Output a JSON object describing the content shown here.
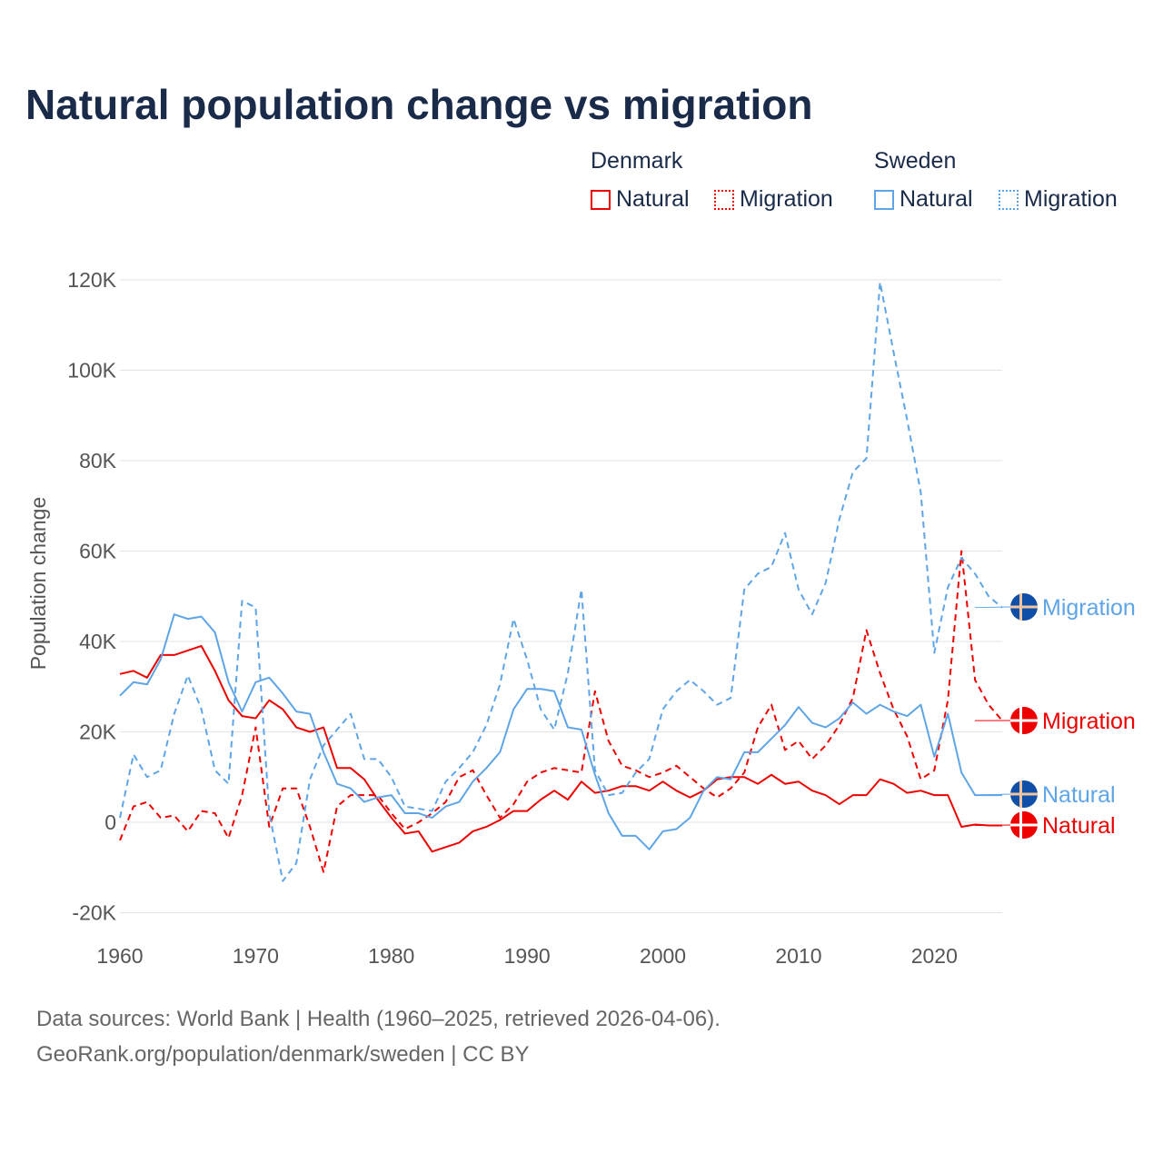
{
  "chart_data": {
    "type": "line",
    "title": "Natural population change vs migration",
    "xlabel": "",
    "ylabel": "Population change",
    "xlim": [
      1960,
      2025
    ],
    "ylim": [
      -20000,
      120000
    ],
    "x_ticks": [
      1960,
      1970,
      1980,
      1990,
      2000,
      2010,
      2020
    ],
    "x_tick_labels": [
      "1960",
      "1970",
      "1980",
      "1990",
      "2000",
      "2010",
      "2020"
    ],
    "y_ticks": [
      -20000,
      0,
      20000,
      40000,
      60000,
      80000,
      100000,
      120000
    ],
    "y_tick_labels": [
      "-20K",
      "0",
      "20K",
      "40K",
      "60K",
      "80K",
      "100K",
      "120K"
    ],
    "grid": true,
    "legend_placement": "top-right",
    "legend_groups": [
      {
        "country": "Denmark",
        "items": [
          "Natural",
          "Migration"
        ]
      },
      {
        "country": "Sweden",
        "items": [
          "Natural",
          "Migration"
        ]
      }
    ],
    "x": [
      1960,
      1961,
      1962,
      1963,
      1964,
      1965,
      1966,
      1967,
      1968,
      1969,
      1970,
      1971,
      1972,
      1973,
      1974,
      1975,
      1976,
      1977,
      1978,
      1979,
      1980,
      1981,
      1982,
      1983,
      1984,
      1985,
      1986,
      1987,
      1988,
      1989,
      1990,
      1991,
      1992,
      1993,
      1994,
      1995,
      1996,
      1997,
      1998,
      1999,
      2000,
      2001,
      2002,
      2003,
      2004,
      2005,
      2006,
      2007,
      2008,
      2009,
      2010,
      2011,
      2012,
      2013,
      2014,
      2015,
      2016,
      2017,
      2018,
      2019,
      2020,
      2021,
      2022,
      2023,
      2024,
      2025
    ],
    "series": [
      {
        "name": "Denmark Natural",
        "end_label": "Natural",
        "color": "#ee0000",
        "dash": false,
        "flag": "denmark",
        "values": [
          32.8,
          33.5,
          32,
          37,
          37,
          38,
          39,
          33.5,
          27,
          23.5,
          23,
          27,
          25,
          21,
          20,
          21,
          12,
          12,
          9.5,
          5,
          1,
          -2.5,
          -2,
          -6.5,
          -5.5,
          -4.5,
          -2,
          -1,
          0.5,
          2.5,
          2.5,
          5,
          7,
          5,
          9,
          6.5,
          7,
          8,
          8,
          7,
          9,
          7,
          5.5,
          7,
          9.5,
          10,
          10,
          8.5,
          10.5,
          8.5,
          9,
          7,
          6,
          4,
          6,
          6,
          9.5,
          8.5,
          6.5,
          7,
          6,
          6,
          -1,
          -0.5,
          -0.7,
          -0.7
        ]
      },
      {
        "name": "Denmark Migration",
        "end_label": "Migration",
        "color": "#ee0000",
        "dash": true,
        "flag": "denmark",
        "values": [
          -4,
          3.5,
          4.5,
          1,
          1.5,
          -2,
          2.5,
          2,
          -3.5,
          6,
          21,
          -1,
          7.5,
          7.5,
          -1,
          -11,
          3.5,
          6,
          6,
          6,
          2,
          -1.5,
          0,
          2,
          4.5,
          10,
          11.5,
          6,
          1,
          4,
          9,
          11,
          12,
          11.5,
          11,
          29,
          18,
          12.5,
          11.5,
          10,
          11,
          12.5,
          10,
          7.5,
          5.5,
          7.5,
          11,
          21,
          26,
          16,
          18,
          14,
          17,
          21.5,
          27.5,
          42.5,
          33,
          25,
          19,
          9.5,
          11.5,
          27,
          60,
          31.5,
          26,
          22.5
        ]
      },
      {
        "name": "Sweden Natural",
        "end_label": "Natural",
        "color": "#5ea5e8",
        "dash": false,
        "flag": "sweden",
        "values": [
          28,
          31,
          30.5,
          36,
          46,
          45,
          45.5,
          42,
          31,
          24.5,
          31,
          32,
          28.5,
          24.5,
          24,
          15.5,
          8.5,
          7.5,
          4.5,
          5.5,
          6,
          2,
          2,
          1,
          3.5,
          4.5,
          9,
          12,
          15.5,
          25,
          29.5,
          29.5,
          29,
          21,
          20.5,
          10.5,
          2,
          -3,
          -3,
          -6,
          -2,
          -1.5,
          1,
          7,
          10,
          9.5,
          15.5,
          15.5,
          18.5,
          21.5,
          25.5,
          22,
          21,
          23,
          26.5,
          24,
          26,
          24.5,
          23.5,
          26,
          14.5,
          24,
          11,
          6,
          6,
          6
        ]
      },
      {
        "name": "Sweden Migration",
        "end_label": "Migration",
        "color": "#5ea5e8",
        "dash": true,
        "flag": "sweden",
        "values": [
          1,
          15,
          10,
          11.5,
          24,
          32.5,
          25,
          11.5,
          8.5,
          49,
          47.5,
          2,
          -13,
          -9,
          9.5,
          17,
          20.5,
          24,
          14,
          14,
          10,
          3.5,
          3,
          2.5,
          9,
          12,
          15.5,
          21.5,
          30.5,
          45,
          36,
          25,
          20.5,
          33,
          51.5,
          11.5,
          6,
          6.5,
          11,
          14,
          25,
          29,
          31.5,
          29,
          26,
          27.5,
          51.5,
          55,
          56.5,
          64,
          51.5,
          46,
          53,
          67,
          77.5,
          80.5,
          119.5,
          104,
          89,
          73,
          37.5,
          52,
          58.5,
          55,
          50,
          47.5
        ]
      }
    ],
    "value_unit": "thousands"
  },
  "legend": {
    "denmark": "Denmark",
    "sweden": "Sweden",
    "natural": "Natural",
    "migration": "Migration"
  },
  "footer": {
    "line1": "Data sources: World Bank | Health (1960–2025, retrieved 2026-04-06).",
    "line2": "GeoRank.org/population/denmark/sweden | CC BY"
  },
  "colors": {
    "denmark": "#ee0000",
    "sweden": "#5ea5e8",
    "title": "#1a2b4a"
  }
}
